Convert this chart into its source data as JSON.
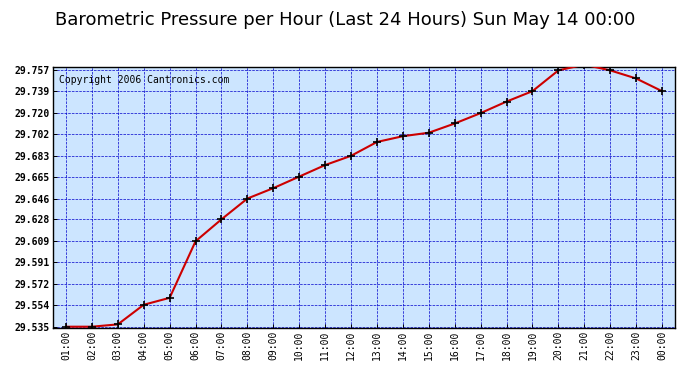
{
  "title": "Barometric Pressure per Hour (Last 24 Hours) Sun May 14 00:00",
  "copyright": "Copyright 2006 Cantronics.com",
  "x_labels": [
    "01:00",
    "02:00",
    "03:00",
    "04:00",
    "05:00",
    "06:00",
    "07:00",
    "08:00",
    "09:00",
    "10:00",
    "11:00",
    "12:00",
    "13:00",
    "14:00",
    "15:00",
    "16:00",
    "17:00",
    "18:00",
    "19:00",
    "20:00",
    "21:00",
    "22:00",
    "23:00",
    "00:00"
  ],
  "y_values": [
    29.535,
    29.535,
    29.537,
    29.554,
    29.56,
    29.609,
    29.628,
    29.646,
    29.655,
    29.665,
    29.675,
    29.683,
    29.695,
    29.7,
    29.703,
    29.711,
    29.72,
    29.73,
    29.739,
    29.757,
    29.762,
    29.757,
    29.75,
    29.739
  ],
  "ylim_min": 29.535,
  "ylim_max": 29.757,
  "yticks": [
    29.535,
    29.554,
    29.572,
    29.591,
    29.609,
    29.628,
    29.646,
    29.665,
    29.683,
    29.702,
    29.72,
    29.739,
    29.757
  ],
  "line_color": "#cc0000",
  "marker_color": "#000000",
  "bg_color": "#cce5ff",
  "plot_bg": "#cce5ff",
  "grid_color": "#0000cc",
  "border_color": "#000000",
  "title_fontsize": 13,
  "copyright_fontsize": 7
}
